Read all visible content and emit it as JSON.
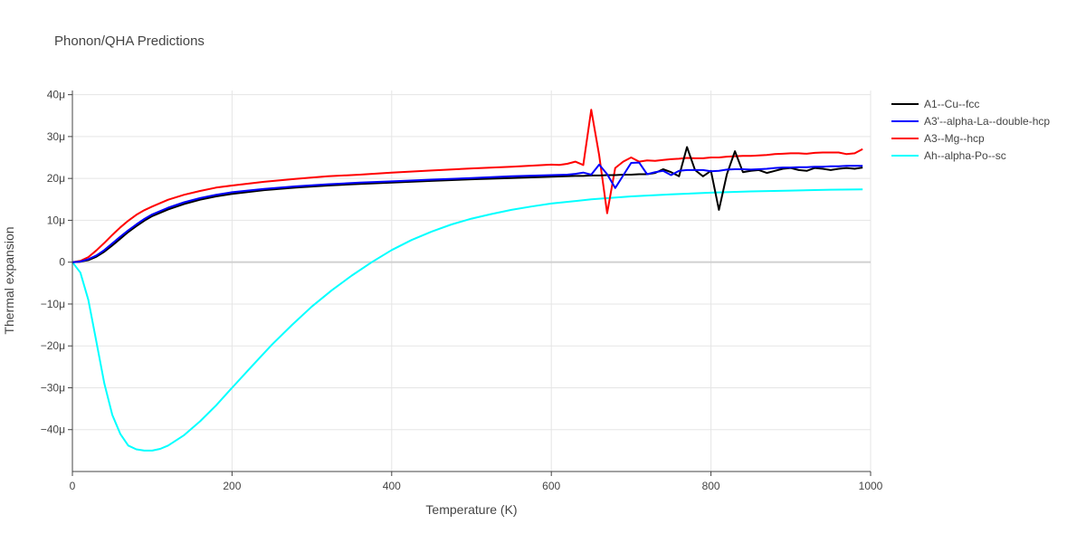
{
  "chart_data": {
    "type": "line",
    "title": "Phonon/QHA Predictions",
    "xlabel": "Temperature (K)",
    "ylabel": "Thermal expansion",
    "xlim": [
      0,
      1000
    ],
    "ylim": [
      -50,
      41
    ],
    "xticks": [
      0,
      200,
      400,
      600,
      800,
      1000
    ],
    "xtick_labels": [
      "0",
      "200",
      "400",
      "600",
      "800",
      "1000"
    ],
    "yticks": [
      -40,
      -30,
      -20,
      -10,
      0,
      10,
      20,
      30,
      40
    ],
    "ytick_labels": [
      "−40μ",
      "−30μ",
      "−20μ",
      "−10μ",
      "0",
      "10μ",
      "20μ",
      "30μ",
      "40μ"
    ],
    "grid": true,
    "legend_position": "top-right",
    "series": [
      {
        "name": "A1--Cu--fcc",
        "color": "#000000",
        "x": [
          0,
          10,
          20,
          30,
          40,
          50,
          60,
          70,
          80,
          90,
          100,
          120,
          140,
          160,
          180,
          200,
          240,
          280,
          320,
          360,
          400,
          450,
          500,
          550,
          600,
          630,
          640,
          650,
          660,
          670,
          680,
          690,
          700,
          710,
          720,
          730,
          740,
          750,
          760,
          770,
          780,
          790,
          800,
          810,
          820,
          830,
          840,
          850,
          860,
          870,
          880,
          890,
          900,
          910,
          920,
          930,
          940,
          950,
          960,
          970,
          980,
          990
        ],
        "y": [
          0,
          0.1,
          0.5,
          1.3,
          2.5,
          4.0,
          5.6,
          7.2,
          8.6,
          9.9,
          11.0,
          12.6,
          13.9,
          14.9,
          15.7,
          16.3,
          17.2,
          17.8,
          18.3,
          18.7,
          19.0,
          19.4,
          19.8,
          20.1,
          20.4,
          20.6,
          20.6,
          20.7,
          20.7,
          20.8,
          20.8,
          20.9,
          20.9,
          21.0,
          21.0,
          21.3,
          22.2,
          21.5,
          20.5,
          27.5,
          22.0,
          20.5,
          21.8,
          12.5,
          21.0,
          26.5,
          21.5,
          21.8,
          22.0,
          21.3,
          21.8,
          22.3,
          22.5,
          22.0,
          21.8,
          22.5,
          22.3,
          22.0,
          22.3,
          22.5,
          22.3,
          22.6
        ]
      },
      {
        "name": "A3'--alpha-La--double-hcp",
        "color": "#0000ff",
        "x": [
          0,
          10,
          20,
          30,
          40,
          50,
          60,
          70,
          80,
          90,
          100,
          120,
          140,
          160,
          180,
          200,
          240,
          280,
          320,
          360,
          400,
          450,
          500,
          550,
          600,
          620,
          630,
          640,
          650,
          660,
          670,
          680,
          690,
          700,
          710,
          720,
          730,
          740,
          750,
          760,
          770,
          780,
          790,
          800,
          810,
          820,
          830,
          840,
          850,
          860,
          870,
          880,
          890,
          900,
          910,
          920,
          930,
          940,
          950,
          960,
          970,
          980,
          990
        ],
        "y": [
          0,
          0.15,
          0.7,
          1.6,
          2.9,
          4.5,
          6.1,
          7.6,
          9.0,
          10.3,
          11.4,
          13.0,
          14.3,
          15.3,
          16.1,
          16.7,
          17.5,
          18.1,
          18.6,
          19.0,
          19.3,
          19.7,
          20.1,
          20.5,
          20.8,
          20.9,
          21.1,
          21.4,
          20.9,
          23.3,
          21.0,
          17.7,
          20.7,
          23.7,
          23.8,
          21.0,
          21.5,
          21.8,
          20.8,
          21.8,
          22.0,
          22.0,
          22.0,
          21.7,
          21.8,
          22.1,
          22.2,
          22.2,
          22.1,
          22.2,
          22.3,
          22.5,
          22.6,
          22.6,
          22.7,
          22.7,
          22.8,
          22.8,
          22.9,
          22.9,
          23.0,
          23.0,
          23.0
        ]
      },
      {
        "name": "A3--Mg--hcp",
        "color": "#ff0000",
        "x": [
          0,
          10,
          20,
          30,
          40,
          50,
          60,
          70,
          80,
          90,
          100,
          120,
          140,
          160,
          180,
          200,
          240,
          280,
          320,
          360,
          400,
          450,
          500,
          550,
          600,
          610,
          620,
          630,
          640,
          650,
          660,
          670,
          680,
          690,
          700,
          710,
          720,
          730,
          740,
          750,
          760,
          770,
          780,
          790,
          800,
          810,
          820,
          830,
          840,
          850,
          860,
          870,
          880,
          890,
          900,
          910,
          920,
          930,
          940,
          950,
          960,
          970,
          980,
          990
        ],
        "y": [
          0,
          0.3,
          1.2,
          2.8,
          4.6,
          6.5,
          8.3,
          9.9,
          11.3,
          12.4,
          13.3,
          14.9,
          16.1,
          17.0,
          17.8,
          18.3,
          19.2,
          19.9,
          20.5,
          20.9,
          21.4,
          21.9,
          22.4,
          22.8,
          23.3,
          23.2,
          23.5,
          24.0,
          23.2,
          36.4,
          25.5,
          11.7,
          22.5,
          24.0,
          25.0,
          24.0,
          24.3,
          24.2,
          24.4,
          24.6,
          24.7,
          24.9,
          24.8,
          24.8,
          25.0,
          25.0,
          25.2,
          25.3,
          25.4,
          25.4,
          25.5,
          25.6,
          25.8,
          25.9,
          26.0,
          26.0,
          25.9,
          26.1,
          26.2,
          26.2,
          26.2,
          25.8,
          26.0,
          27.0
        ]
      },
      {
        "name": "Ah--alpha-Po--sc",
        "color": "#00ffff",
        "x": [
          0,
          10,
          20,
          30,
          40,
          50,
          60,
          70,
          80,
          90,
          100,
          110,
          120,
          140,
          160,
          180,
          200,
          225,
          250,
          275,
          300,
          325,
          350,
          375,
          400,
          425,
          450,
          475,
          500,
          525,
          550,
          575,
          600,
          650,
          700,
          750,
          800,
          850,
          900,
          950,
          990
        ],
        "y": [
          0,
          -2.5,
          -9.0,
          -19.0,
          -29.0,
          -36.5,
          -41.0,
          -43.8,
          -44.7,
          -45.0,
          -45.0,
          -44.6,
          -43.8,
          -41.3,
          -38.0,
          -34.2,
          -30.0,
          -24.8,
          -19.7,
          -15.0,
          -10.6,
          -6.7,
          -3.2,
          0.0,
          2.9,
          5.3,
          7.3,
          9.0,
          10.4,
          11.5,
          12.5,
          13.3,
          14.0,
          15.0,
          15.7,
          16.2,
          16.6,
          16.9,
          17.1,
          17.3,
          17.4
        ]
      }
    ]
  }
}
